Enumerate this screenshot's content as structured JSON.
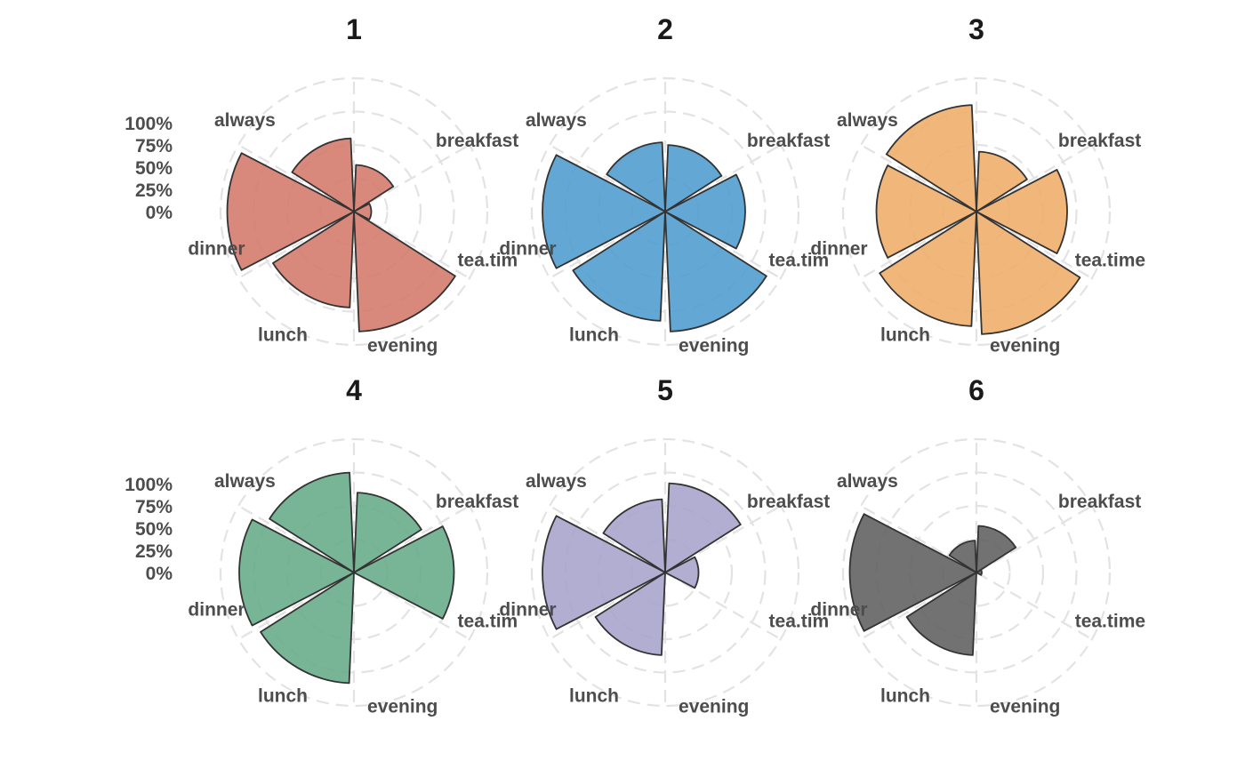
{
  "chart_data": {
    "type": "polar-bar",
    "categories": [
      "breakfast",
      "tea.time",
      "evening",
      "lunch",
      "dinner",
      "always"
    ],
    "radial_ticks": [
      "0%",
      "25%",
      "50%",
      "75%",
      "100%"
    ],
    "rlim": [
      0,
      1
    ],
    "grid": true,
    "panels": [
      {
        "title": "1",
        "color": "#d4786a",
        "category_labels": [
          "breakfast",
          "tea.tim",
          "evening",
          "lunch",
          "dinner",
          "always"
        ],
        "show_radial_ticks": true,
        "values": [
          0.35,
          0.13,
          0.9,
          0.72,
          0.95,
          0.55
        ]
      },
      {
        "title": "2",
        "color": "#4d9ccf",
        "category_labels": [
          "breakfast",
          "tea.tim",
          "evening",
          "lunch",
          "dinner",
          "always"
        ],
        "show_radial_ticks": false,
        "values": [
          0.5,
          0.6,
          0.9,
          0.82,
          0.92,
          0.52
        ]
      },
      {
        "title": "3",
        "color": "#eeac68",
        "category_labels": [
          "breakfast",
          "tea.time",
          "evening",
          "lunch",
          "dinner",
          "always"
        ],
        "show_radial_ticks": false,
        "values": [
          0.45,
          0.68,
          0.92,
          0.86,
          0.75,
          0.8
        ]
      },
      {
        "title": "4",
        "color": "#64ab87",
        "category_labels": [
          "breakfast",
          "tea.tim",
          "evening",
          "lunch",
          "dinner",
          "always"
        ],
        "show_radial_ticks": true,
        "values": [
          0.6,
          0.75,
          0.0,
          0.83,
          0.86,
          0.75
        ]
      },
      {
        "title": "5",
        "color": "#a6a3cc",
        "category_labels": [
          "breakfast",
          "tea.tim",
          "evening",
          "lunch",
          "dinner",
          "always"
        ],
        "show_radial_ticks": false,
        "values": [
          0.67,
          0.25,
          0.0,
          0.62,
          0.92,
          0.55
        ]
      },
      {
        "title": "6",
        "color": "#5e5e5e",
        "category_labels": [
          "breakfast",
          "tea.time",
          "evening",
          "lunch",
          "dinner",
          "always"
        ],
        "show_radial_ticks": false,
        "values": [
          0.35,
          0.04,
          0.0,
          0.62,
          0.95,
          0.24
        ]
      }
    ]
  }
}
